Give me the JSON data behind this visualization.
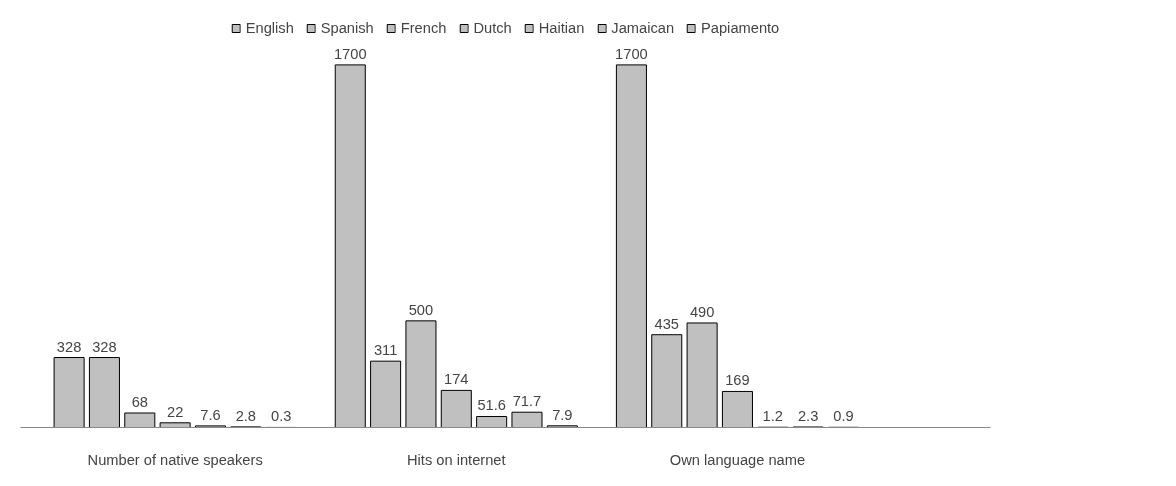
{
  "chart_data": {
    "type": "bar",
    "categories": [
      "Number of native speakers",
      "Hits on internet",
      "Own language name"
    ],
    "series": [
      {
        "name": "English",
        "color": "#c0c0c0",
        "values": [
          328,
          1700,
          1700
        ]
      },
      {
        "name": "Spanish",
        "color": "#c0c0c0",
        "values": [
          328,
          311,
          435
        ]
      },
      {
        "name": "French",
        "color": "#c0c0c0",
        "values": [
          68,
          500,
          490
        ]
      },
      {
        "name": "Dutch",
        "color": "#c0c0c0",
        "values": [
          22,
          174,
          169
        ]
      },
      {
        "name": "Haitian",
        "color": "#c0c0c0",
        "values": [
          7.6,
          51.6,
          1.2
        ]
      },
      {
        "name": "Jamaican",
        "color": "#c0c0c0",
        "values": [
          2.8,
          71.7,
          2.3
        ]
      },
      {
        "name": "Papiamento",
        "color": "#c0c0c0",
        "values": [
          0.3,
          7.9,
          0.9
        ]
      }
    ],
    "data_labels": true,
    "legend": "top"
  }
}
